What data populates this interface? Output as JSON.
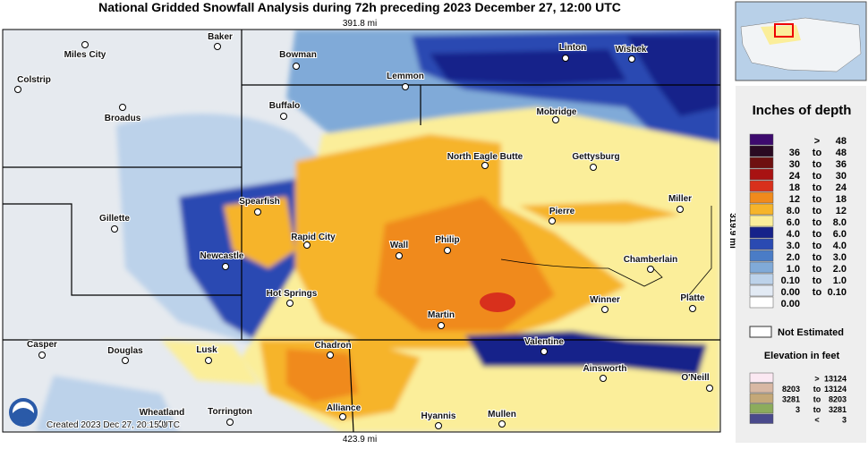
{
  "title": "National Gridded Snowfall Analysis during 72h preceding 2023 December 27, 12:00 UTC",
  "scale_top": "391.8 mi",
  "scale_bottom": "423.9 mi",
  "scale_right": "319.9 mi",
  "created": "Created 2023 Dec 27, 20:15 UTC",
  "cities": [
    "Baker",
    "Miles City",
    "Colstrip",
    "Broadus",
    "Bowman",
    "Lemmon",
    "Linton",
    "Wishek",
    "Buffalo",
    "Mobridge",
    "North Eagle Butte",
    "Gettysburg",
    "Spearfish",
    "Gillette",
    "Pierre",
    "Miller",
    "Rapid City",
    "Wall",
    "Philip",
    "Newcastle",
    "Chamberlain",
    "Hot Springs",
    "Winner",
    "Platte",
    "Martin",
    "Casper",
    "Douglas",
    "Lusk",
    "Chadron",
    "Valentine",
    "Ainsworth",
    "O'Neill",
    "Alliance",
    "Hyannis",
    "Mullen",
    "Wheatland",
    "Torrington"
  ],
  "depth_legend": {
    "title": "Inches of depth",
    "items": [
      {
        "color": "#3d0a6e",
        "mid": ">",
        "hi": "48"
      },
      {
        "color": "#2a0a22",
        "lo": "36",
        "mid": "to",
        "hi": "48"
      },
      {
        "color": "#6e1010",
        "lo": "30",
        "mid": "to",
        "hi": "36"
      },
      {
        "color": "#a81212",
        "lo": "24",
        "mid": "to",
        "hi": "30"
      },
      {
        "color": "#d8301c",
        "lo": "18",
        "mid": "to",
        "hi": "24"
      },
      {
        "color": "#f08a1c",
        "lo": "12",
        "mid": "to",
        "hi": "18"
      },
      {
        "color": "#f6b42a",
        "lo": "8.0",
        "mid": "to",
        "hi": "12"
      },
      {
        "color": "#fbee9a",
        "lo": "6.0",
        "mid": "to",
        "hi": "8.0"
      },
      {
        "color": "#16228a",
        "lo": "4.0",
        "mid": "to",
        "hi": "6.0"
      },
      {
        "color": "#2a4ab2",
        "lo": "3.0",
        "mid": "to",
        "hi": "4.0"
      },
      {
        "color": "#4a7cc6",
        "lo": "2.0",
        "mid": "to",
        "hi": "3.0"
      },
      {
        "color": "#80aad8",
        "lo": "1.0",
        "mid": "to",
        "hi": "2.0"
      },
      {
        "color": "#bcd2ea",
        "lo": "0.10",
        "mid": "to",
        "hi": "1.0"
      },
      {
        "color": "#e2eaf4",
        "lo": "0.00",
        "mid": "to",
        "hi": "0.10"
      },
      {
        "color": "#ffffff",
        "lo": "0.00"
      }
    ]
  },
  "not_estimated": "Not Estimated",
  "elevation_legend": {
    "title": "Elevation in feet",
    "items": [
      {
        "color": "#fbe8f2",
        "mid": ">",
        "hi": "13124"
      },
      {
        "color": "#d8b8a4",
        "lo": "8203",
        "mid": "to",
        "hi": "13124"
      },
      {
        "color": "#c4a878",
        "lo": "3281",
        "mid": "to",
        "hi": "8203"
      },
      {
        "color": "#8cac5c",
        "lo": "3",
        "mid": "to",
        "hi": "3281"
      },
      {
        "color": "#4a4a8c",
        "mid": "<",
        "hi": "3"
      }
    ]
  }
}
